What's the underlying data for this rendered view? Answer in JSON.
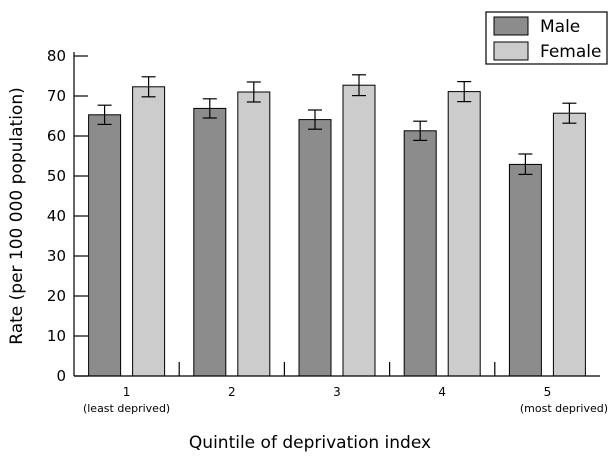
{
  "chart_data": {
    "type": "bar",
    "title": "",
    "xlabel": "Quintile of deprivation index",
    "ylabel": "Rate (per 100 000 population)",
    "ylim": [
      0,
      80
    ],
    "yticks": [
      0,
      10,
      20,
      30,
      40,
      50,
      60,
      70,
      80
    ],
    "categories": [
      "1",
      "2",
      "3",
      "4",
      "5"
    ],
    "category_sublabels": [
      "(least deprived)",
      "",
      "",
      "",
      "(most deprived)"
    ],
    "series": [
      {
        "name": "Male",
        "color": "#8c8c8c",
        "values": [
          65.3,
          66.9,
          64.1,
          61.3,
          52.9
        ],
        "error_low": [
          62.9,
          64.5,
          61.7,
          58.9,
          50.4
        ],
        "error_high": [
          67.7,
          69.3,
          66.5,
          63.7,
          55.5
        ]
      },
      {
        "name": "Female",
        "color": "#cccccc",
        "values": [
          72.3,
          71.0,
          72.7,
          71.1,
          65.7
        ],
        "error_low": [
          69.8,
          68.5,
          70.1,
          68.6,
          63.2
        ],
        "error_high": [
          74.8,
          73.5,
          75.3,
          73.6,
          68.2
        ]
      }
    ],
    "legend": "top-right",
    "grid": false
  }
}
